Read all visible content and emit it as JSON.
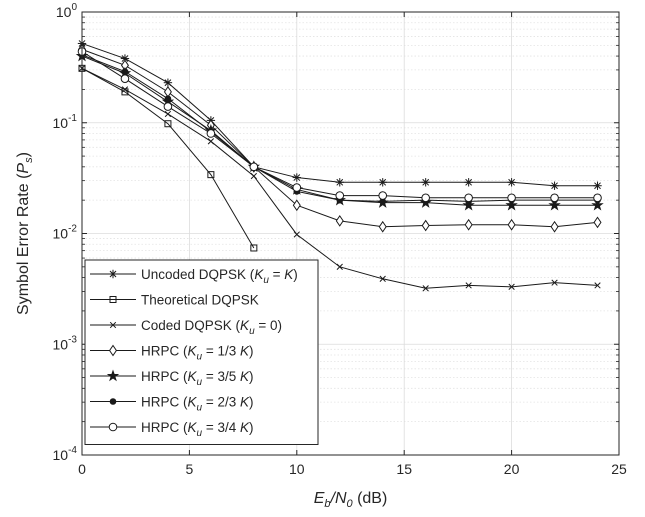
{
  "chart_data": {
    "type": "line",
    "xlabel": {
      "main": "E",
      "sub1": "b",
      "mid": "/N",
      "sub2": "0",
      "unit": " (dB)"
    },
    "ylabel": {
      "main": "Symbol Error Rate (P",
      "sub": "s",
      "close": ")"
    },
    "xlim": [
      0,
      25
    ],
    "ylim": [
      0.0001,
      1
    ],
    "yscale": "log",
    "grid": true,
    "minor_grid": true,
    "legend_position": "bottom-left",
    "x_ticks": [
      {
        "value": 0,
        "label": "0"
      },
      {
        "value": 5,
        "label": "5"
      },
      {
        "value": 10,
        "label": "10"
      },
      {
        "value": 15,
        "label": "15"
      },
      {
        "value": 20,
        "label": "20"
      },
      {
        "value": 25,
        "label": "25"
      }
    ],
    "y_ticks": [
      {
        "value": 1,
        "base": "10",
        "exp": "0"
      },
      {
        "value": 0.1,
        "base": "10",
        "exp": "-1"
      },
      {
        "value": 0.01,
        "base": "10",
        "exp": "-2"
      },
      {
        "value": 0.001,
        "base": "10",
        "exp": "-3"
      },
      {
        "value": 0.0001,
        "base": "10",
        "exp": "-4"
      }
    ],
    "series": [
      {
        "id": "uncoded",
        "marker": "asterisk",
        "legend": [
          {
            "t": "Uncoded DQPSK ("
          },
          {
            "t": "K",
            "i": true
          },
          {
            "t": "u",
            "sub": true,
            "i": true
          },
          {
            "t": " = "
          },
          {
            "t": "K",
            "i": true
          },
          {
            "t": ")"
          }
        ],
        "x": [
          0,
          2,
          4,
          6,
          8,
          10,
          12,
          14,
          16,
          18,
          20,
          22,
          24
        ],
        "y": [
          0.52,
          0.38,
          0.23,
          0.105,
          0.04,
          0.032,
          0.029,
          0.029,
          0.029,
          0.029,
          0.029,
          0.027,
          0.027
        ]
      },
      {
        "id": "theoretical",
        "marker": "square",
        "legend": [
          {
            "t": "Theoretical DQPSK"
          }
        ],
        "x": [
          0,
          2,
          4,
          6,
          8
        ],
        "y": [
          0.31,
          0.19,
          0.098,
          0.034,
          0.0074
        ]
      },
      {
        "id": "coded",
        "marker": "x",
        "legend": [
          {
            "t": "Coded DQPSK ("
          },
          {
            "t": "K",
            "i": true
          },
          {
            "t": "u",
            "sub": true,
            "i": true
          },
          {
            "t": " = 0)"
          }
        ],
        "x": [
          0,
          2,
          4,
          6,
          8,
          10,
          12,
          14,
          16,
          18,
          20,
          22,
          24
        ],
        "y": [
          0.31,
          0.2,
          0.12,
          0.068,
          0.033,
          0.0098,
          0.005,
          0.0039,
          0.0032,
          0.0034,
          0.0033,
          0.0036,
          0.0034
        ]
      },
      {
        "id": "hrpc13",
        "marker": "diamond",
        "legend": [
          {
            "t": "HRPC ("
          },
          {
            "t": "K",
            "i": true
          },
          {
            "t": "u",
            "sub": true,
            "i": true
          },
          {
            "t": " = 1/3 "
          },
          {
            "t": "K",
            "i": true
          },
          {
            "t": ")"
          }
        ],
        "x": [
          0,
          2,
          4,
          6,
          8,
          10,
          12,
          14,
          16,
          18,
          20,
          22,
          24
        ],
        "y": [
          0.46,
          0.33,
          0.19,
          0.095,
          0.04,
          0.018,
          0.013,
          0.0115,
          0.0118,
          0.012,
          0.012,
          0.0115,
          0.0126
        ]
      },
      {
        "id": "hrpc35",
        "marker": "star",
        "legend": [
          {
            "t": "HRPC ("
          },
          {
            "t": "K",
            "i": true
          },
          {
            "t": "u",
            "sub": true,
            "i": true
          },
          {
            "t": " = 3/5 "
          },
          {
            "t": "K",
            "i": true
          },
          {
            "t": ")"
          }
        ],
        "x": [
          0,
          2,
          4,
          6,
          8,
          10,
          12,
          14,
          16,
          18,
          20,
          22,
          24
        ],
        "y": [
          0.4,
          0.28,
          0.155,
          0.085,
          0.04,
          0.025,
          0.02,
          0.019,
          0.019,
          0.018,
          0.018,
          0.018,
          0.018
        ]
      },
      {
        "id": "hrpc23",
        "marker": "dot",
        "legend": [
          {
            "t": "HRPC ("
          },
          {
            "t": "K",
            "i": true
          },
          {
            "t": "u",
            "sub": true,
            "i": true
          },
          {
            "t": " = 2/3 "
          },
          {
            "t": "K",
            "i": true
          },
          {
            "t": ")"
          }
        ],
        "x": [
          0,
          2,
          4,
          6,
          8,
          10,
          12,
          14,
          16,
          18,
          20,
          22,
          24
        ],
        "y": [
          0.41,
          0.29,
          0.165,
          0.083,
          0.04,
          0.024,
          0.02,
          0.0195,
          0.02,
          0.0195,
          0.02,
          0.02,
          0.02
        ]
      },
      {
        "id": "hrpc34",
        "marker": "circle",
        "legend": [
          {
            "t": "HRPC ("
          },
          {
            "t": "K",
            "i": true
          },
          {
            "t": "u",
            "sub": true,
            "i": true
          },
          {
            "t": " = 3/4 "
          },
          {
            "t": "K",
            "i": true
          },
          {
            "t": ")"
          }
        ],
        "x": [
          0,
          2,
          4,
          6,
          8,
          10,
          12,
          14,
          16,
          18,
          20,
          22,
          24
        ],
        "y": [
          0.44,
          0.25,
          0.14,
          0.08,
          0.04,
          0.026,
          0.022,
          0.022,
          0.021,
          0.021,
          0.021,
          0.021,
          0.021
        ]
      }
    ]
  }
}
